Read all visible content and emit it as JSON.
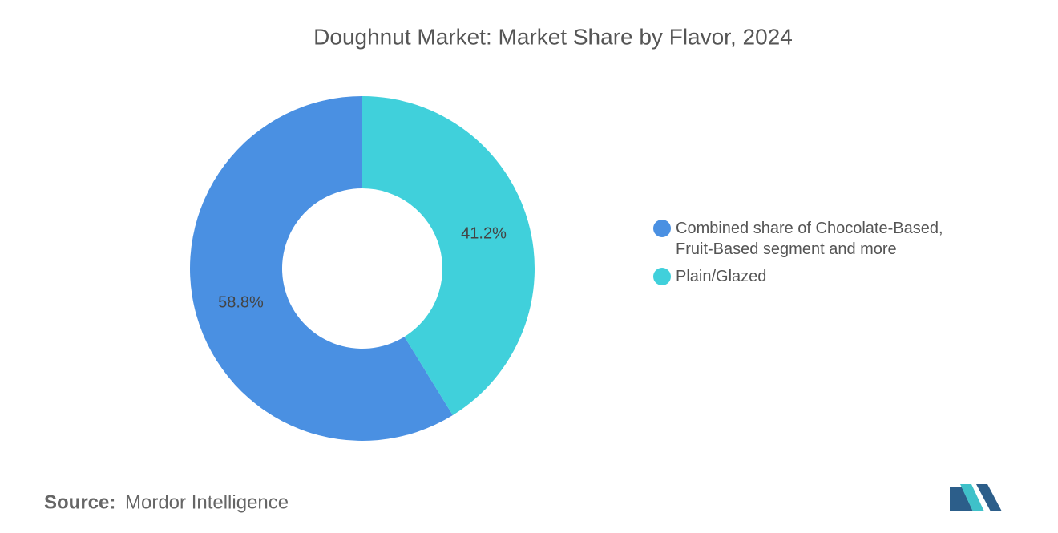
{
  "chart_data": {
    "type": "pie",
    "title": "Doughnut Market: Market Share by Flavor, 2024",
    "categories": [
      "Combined share of Chocolate-Based, Fruit-Based segment and more",
      "Plain/Glazed"
    ],
    "values": [
      58.8,
      41.2
    ],
    "value_labels": [
      "58.8%",
      "41.2%"
    ],
    "colors": [
      "#4a90e2",
      "#40d0db"
    ],
    "legend": "right"
  },
  "footer": {
    "source_label": "Source:",
    "source": "Mordor Intelligence"
  }
}
